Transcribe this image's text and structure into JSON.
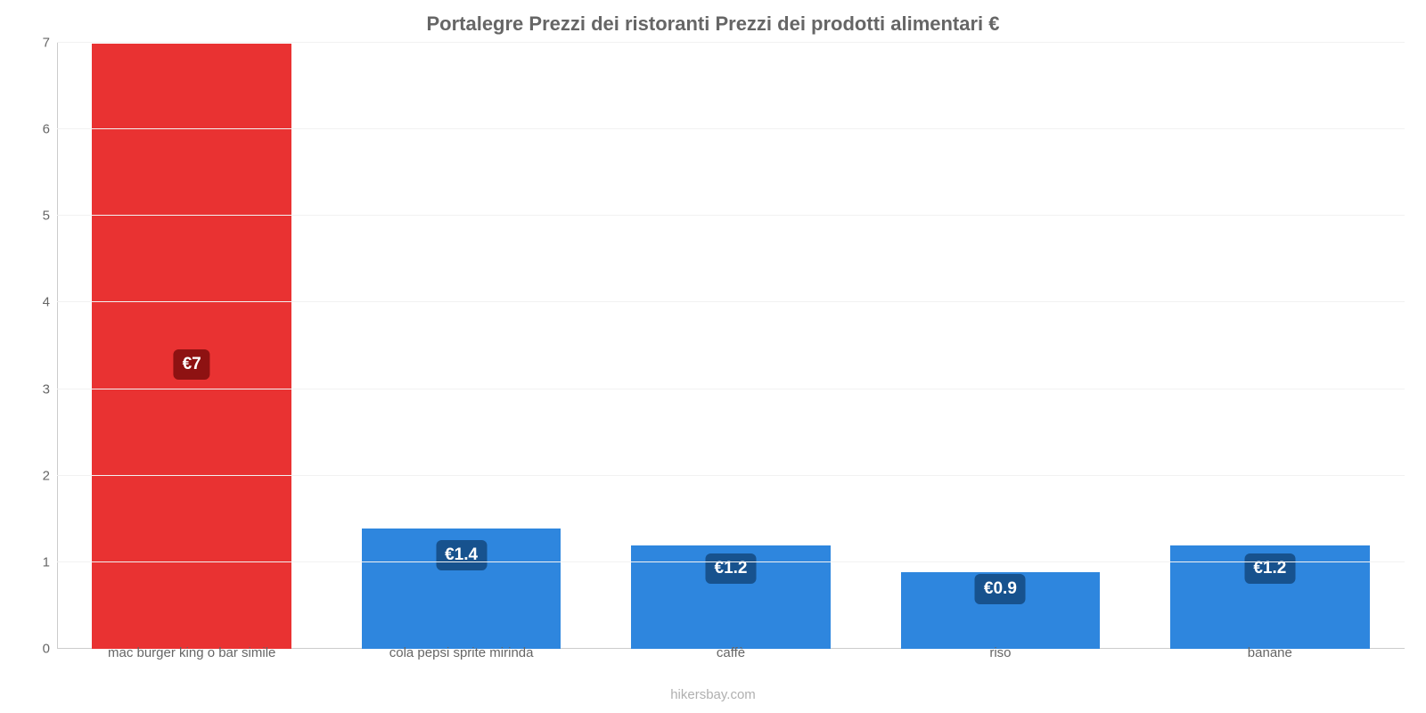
{
  "chart": {
    "type": "bar",
    "title": "Portalegre Prezzi dei ristoranti Prezzi dei prodotti alimentari €",
    "title_color": "#666666",
    "title_fontsize": 22,
    "background_color": "#ffffff",
    "grid_color": "#f2f2f2",
    "axis_line_color": "#cccccc",
    "tick_color": "#666666",
    "tick_fontsize": 15,
    "xlabel_fontsize": 15,
    "ylim": [
      0,
      7
    ],
    "yticks": [
      0,
      1,
      2,
      3,
      4,
      5,
      6,
      7
    ],
    "ytick_labels": [
      "0",
      "1",
      "2",
      "3",
      "4",
      "5",
      "6",
      "7"
    ],
    "bar_width_pct": 74,
    "categories": [
      "mac burger king o bar simile",
      "cola pepsi sprite mirinda",
      "caffè",
      "riso",
      "banane"
    ],
    "values": [
      7,
      1.4,
      1.2,
      0.9,
      1.2
    ],
    "value_labels": [
      "€7",
      "€1.4",
      "€1.2",
      "€0.9",
      "€1.2"
    ],
    "bar_colors": [
      "#e93232",
      "#2e86de",
      "#2e86de",
      "#2e86de",
      "#2e86de"
    ],
    "label_bg_colors": [
      "#8e1212",
      "#17528e",
      "#17528e",
      "#17528e",
      "#17528e"
    ],
    "label_text_color": "#ffffff",
    "label_fontsize": 19,
    "label_y_offsets_pct": [
      53,
      22,
      22,
      22,
      22
    ],
    "footer": "hikersbay.com",
    "footer_color": "#b0b0b0"
  }
}
